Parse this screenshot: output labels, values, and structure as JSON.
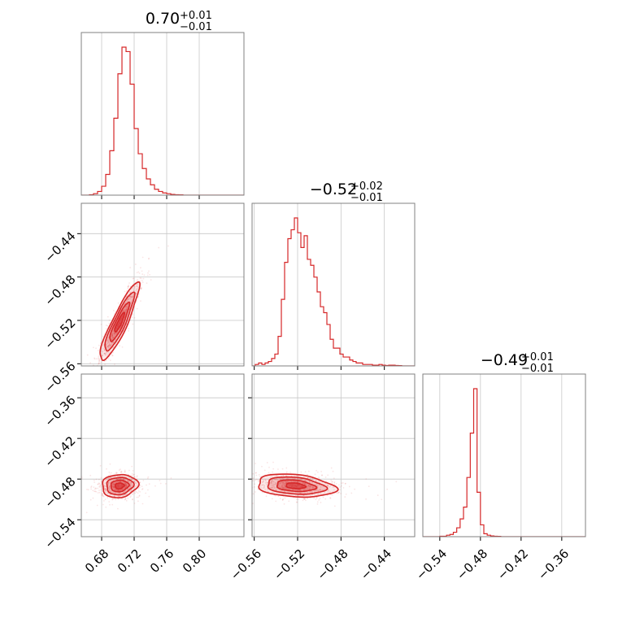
{
  "chart_data": {
    "type": "corner",
    "color": "#d62728",
    "parameters": [
      {
        "title": {
          "main": "0.70",
          "plus": "+0.01",
          "minus": "−0.01"
        },
        "range": [
          0.655,
          0.855
        ],
        "ticks": [
          0.68,
          0.72,
          0.76,
          0.8
        ],
        "tick_labels": [
          "0.68",
          "0.72",
          "0.76",
          "0.80"
        ],
        "histogram": {
          "edges": [
            0.655,
            0.66,
            0.665,
            0.67,
            0.675,
            0.68,
            0.685,
            0.69,
            0.695,
            0.7,
            0.705,
            0.71,
            0.715,
            0.72,
            0.725,
            0.73,
            0.735,
            0.74,
            0.745,
            0.75,
            0.755,
            0.76,
            0.765,
            0.77,
            0.775,
            0.78,
            0.785,
            0.79,
            0.795,
            0.8,
            0.805,
            0.81,
            0.815,
            0.82,
            0.825,
            0.83,
            0.835,
            0.84,
            0.845,
            0.85,
            0.855
          ],
          "counts": [
            0,
            0,
            0.3,
            1,
            2.5,
            6,
            14,
            30,
            52,
            82,
            100,
            97,
            75,
            45,
            28,
            18,
            11,
            7,
            4,
            2.5,
            1.5,
            1,
            0.5,
            0.3,
            0.2,
            0,
            0,
            0,
            0,
            0,
            0,
            0,
            0,
            0,
            0,
            0,
            0,
            0,
            0,
            0
          ]
        }
      },
      {
        "title": {
          "main": "−0.52",
          "plus": "+0.02",
          "minus": "−0.01"
        },
        "range": [
          -0.562,
          -0.412
        ],
        "ticks": [
          -0.56,
          -0.52,
          -0.48,
          -0.44
        ],
        "tick_labels": [
          "−0.56",
          "−0.52",
          "−0.48",
          "−0.44"
        ],
        "histogram": {
          "edges": [
            -0.562,
            -0.559,
            -0.556,
            -0.553,
            -0.55,
            -0.547,
            -0.544,
            -0.541,
            -0.538,
            -0.535,
            -0.532,
            -0.529,
            -0.526,
            -0.523,
            -0.52,
            -0.517,
            -0.514,
            -0.511,
            -0.508,
            -0.505,
            -0.502,
            -0.499,
            -0.496,
            -0.493,
            -0.49,
            -0.487,
            -0.484,
            -0.481,
            -0.478,
            -0.475,
            -0.472,
            -0.469,
            -0.466,
            -0.463,
            -0.46,
            -0.457,
            -0.454,
            -0.451,
            -0.448,
            -0.445,
            -0.442,
            -0.439,
            -0.436,
            -0.433,
            -0.43,
            -0.427,
            -0.424,
            -0.421,
            -0.418,
            -0.415,
            -0.412
          ],
          "counts": [
            0,
            1,
            2,
            1,
            2,
            3,
            5,
            8,
            20,
            45,
            70,
            86,
            92,
            100,
            90,
            80,
            88,
            72,
            68,
            60,
            50,
            40,
            36,
            28,
            18,
            12,
            12,
            8,
            6,
            6,
            4,
            3,
            2,
            2,
            1,
            1,
            1,
            0.5,
            0.5,
            1,
            0.5,
            0.3,
            0.5,
            0.5,
            0.3,
            0.2,
            0,
            0,
            0,
            0
          ]
        }
      },
      {
        "title": {
          "main": "−0.49",
          "plus": "+0.01",
          "minus": "−0.01"
        },
        "range": [
          -0.565,
          -0.325
        ],
        "ticks": [
          -0.54,
          -0.48,
          -0.42,
          -0.36
        ],
        "tick_labels": [
          "−0.54",
          "−0.48",
          "−0.42",
          "−0.36"
        ],
        "histogram": {
          "edges": [
            -0.565,
            -0.56,
            -0.555,
            -0.55,
            -0.545,
            -0.54,
            -0.535,
            -0.53,
            -0.525,
            -0.52,
            -0.515,
            -0.51,
            -0.505,
            -0.5,
            -0.495,
            -0.49,
            -0.485,
            -0.48,
            -0.475,
            -0.47,
            -0.465,
            -0.46,
            -0.455,
            -0.45,
            -0.445,
            -0.44,
            -0.435,
            -0.43,
            -0.425,
            -0.42,
            -0.415,
            -0.41,
            -0.405,
            -0.4,
            -0.395,
            -0.39,
            -0.385,
            -0.38,
            -0.375,
            -0.37,
            -0.365,
            -0.36,
            -0.355,
            -0.35,
            -0.345,
            -0.34,
            -0.335,
            -0.33,
            -0.325
          ],
          "counts": [
            0,
            0,
            0,
            0,
            0,
            0.3,
            0.3,
            1,
            1.5,
            3,
            6,
            12,
            20,
            40,
            70,
            100,
            30,
            8,
            2,
            1,
            0.5,
            0.3,
            0.2,
            0,
            0,
            0,
            0,
            0,
            0,
            0,
            0,
            0,
            0,
            0,
            0,
            0,
            0,
            0,
            0,
            0,
            0,
            0,
            0,
            0,
            0,
            0,
            0,
            0
          ]
        }
      }
    ],
    "pairs": [
      {
        "x_param": 0,
        "y_param": 1,
        "mean": [
          0.702,
          -0.522
        ],
        "std": [
          0.012,
          0.018
        ],
        "rho": 0.9
      },
      {
        "x_param": 0,
        "y_param": 2,
        "mean": [
          0.702,
          -0.49
        ],
        "std": [
          0.011,
          0.0085
        ],
        "rho": 0.1
      },
      {
        "x_param": 1,
        "y_param": 2,
        "mean": [
          -0.522,
          -0.49
        ],
        "std": [
          0.018,
          0.0085
        ],
        "rho": -0.25
      }
    ],
    "grid": true
  }
}
